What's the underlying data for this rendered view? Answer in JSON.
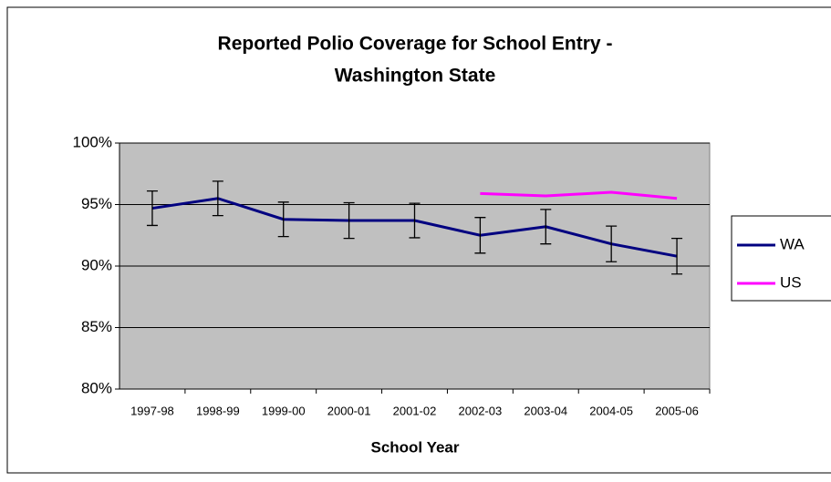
{
  "chart_data": {
    "type": "line",
    "title": [
      "Reported Polio Coverage for School Entry -",
      "Washington State"
    ],
    "x_label": "School Year",
    "categories": [
      "1997-98",
      "1998-99",
      "1999-00",
      "2000-01",
      "2001-02",
      "2002-03",
      "2003-04",
      "2004-05",
      "2005-06"
    ],
    "series": [
      {
        "name": "WA",
        "color": "#000080",
        "values": [
          94.7,
          95.5,
          93.8,
          93.7,
          93.7,
          92.5,
          93.2,
          91.8,
          90.8
        ],
        "errors": [
          1.4,
          1.4,
          1.4,
          1.45,
          1.4,
          1.45,
          1.4,
          1.45,
          1.45
        ]
      },
      {
        "name": "US",
        "color": "#ff00ff",
        "values": [
          null,
          null,
          null,
          null,
          null,
          95.9,
          95.7,
          96.0,
          95.5
        ]
      }
    ],
    "ylim": [
      80,
      100
    ],
    "yticks": [
      {
        "value": 80,
        "label": "80%"
      },
      {
        "value": 85,
        "label": "85%"
      },
      {
        "value": 90,
        "label": "90%"
      },
      {
        "value": 95,
        "label": "95%"
      },
      {
        "value": 100,
        "label": "100%"
      }
    ],
    "grid": true,
    "legend": "right"
  }
}
